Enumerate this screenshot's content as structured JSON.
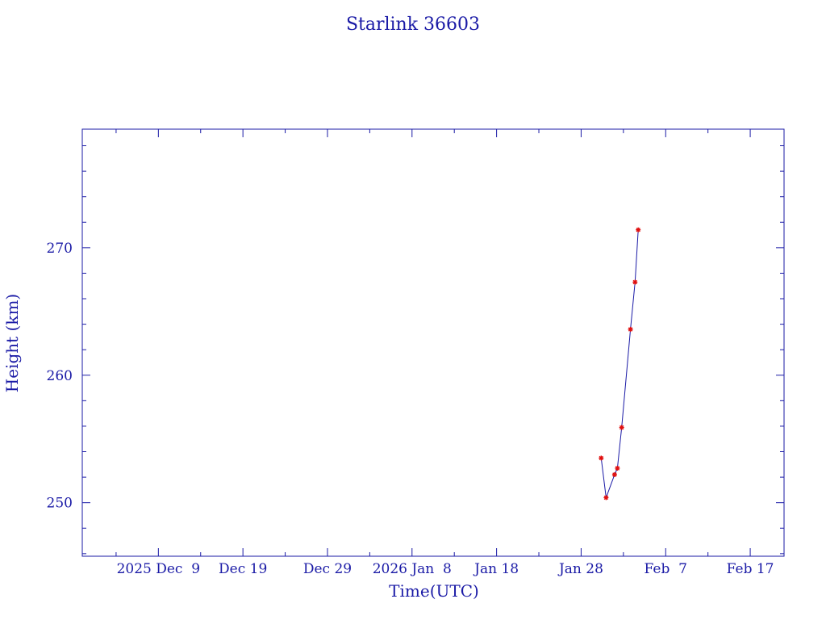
{
  "chart_data": {
    "type": "line",
    "title": "Starlink 36603",
    "xlabel": "Time(UTC)",
    "ylabel": "Height (km)",
    "x_range": [
      "2025-11-30",
      "2026-02-21"
    ],
    "ylim": [
      245.8,
      279.3
    ],
    "x_tick_labels": [
      {
        "label": "2025 Dec  9",
        "date": "2025-12-09"
      },
      {
        "label": "Dec 19",
        "date": "2025-12-19"
      },
      {
        "label": "Dec 29",
        "date": "2025-12-29"
      },
      {
        "label": "2026 Jan  8",
        "date": "2026-01-08"
      },
      {
        "label": "Jan 18",
        "date": "2026-01-18"
      },
      {
        "label": "Jan 28",
        "date": "2026-01-28"
      },
      {
        "label": "Feb  7",
        "date": "2026-02-07"
      },
      {
        "label": "Feb 17",
        "date": "2026-02-17"
      }
    ],
    "y_ticks": [
      250,
      260,
      270
    ],
    "grid": false,
    "series": [
      {
        "points": [
          {
            "x": "2026-01-30T09:00",
            "y": 253.5
          },
          {
            "x": "2026-01-30T23:00",
            "y": 250.4
          },
          {
            "x": "2026-01-31T23:00",
            "y": 252.2
          },
          {
            "x": "2026-02-01T07:00",
            "y": 252.7
          },
          {
            "x": "2026-02-01T19:00",
            "y": 255.9
          },
          {
            "x": "2026-02-02T20:00",
            "y": 263.6
          },
          {
            "x": "2026-02-03T09:00",
            "y": 267.3
          },
          {
            "x": "2026-02-03T18:00",
            "y": 271.4
          }
        ]
      }
    ],
    "colors": {
      "axis": "#1a1aa6",
      "line": "#1a1aa6",
      "marker": "#e01010"
    }
  }
}
